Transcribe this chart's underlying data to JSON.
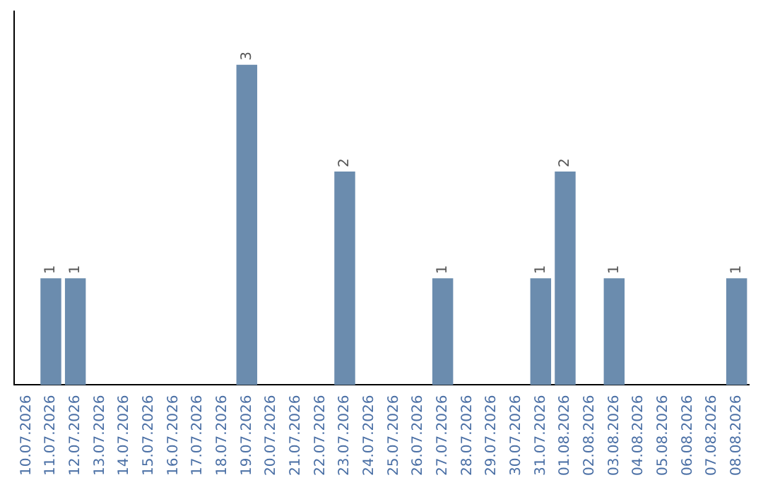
{
  "chart_data": {
    "type": "bar",
    "categories": [
      "10.07.2026",
      "11.07.2026",
      "12.07.2026",
      "13.07.2026",
      "14.07.2026",
      "15.07.2026",
      "16.07.2026",
      "17.07.2026",
      "18.07.2026",
      "19.07.2026",
      "20.07.2026",
      "21.07.2026",
      "22.07.2026",
      "23.07.2026",
      "24.07.2026",
      "25.07.2026",
      "26.07.2026",
      "27.07.2026",
      "28.07.2026",
      "29.07.2026",
      "30.07.2026",
      "31.07.2026",
      "01.08.2026",
      "02.08.2026",
      "03.08.2026",
      "04.08.2026",
      "05.08.2026",
      "06.08.2026",
      "07.08.2026",
      "08.08.2026"
    ],
    "values": [
      0,
      1,
      1,
      0,
      0,
      0,
      0,
      0,
      0,
      3,
      0,
      0,
      0,
      2,
      0,
      0,
      0,
      1,
      0,
      0,
      0,
      1,
      2,
      0,
      1,
      0,
      0,
      0,
      0,
      1
    ],
    "value_labels": [
      null,
      "1",
      "1",
      null,
      null,
      null,
      null,
      null,
      null,
      "3",
      null,
      null,
      null,
      "2",
      null,
      null,
      null,
      "1",
      null,
      null,
      null,
      "1",
      "2",
      null,
      "1",
      null,
      null,
      null,
      null,
      "1"
    ],
    "color": "#6b8cae",
    "grid": false,
    "legend": false
  }
}
